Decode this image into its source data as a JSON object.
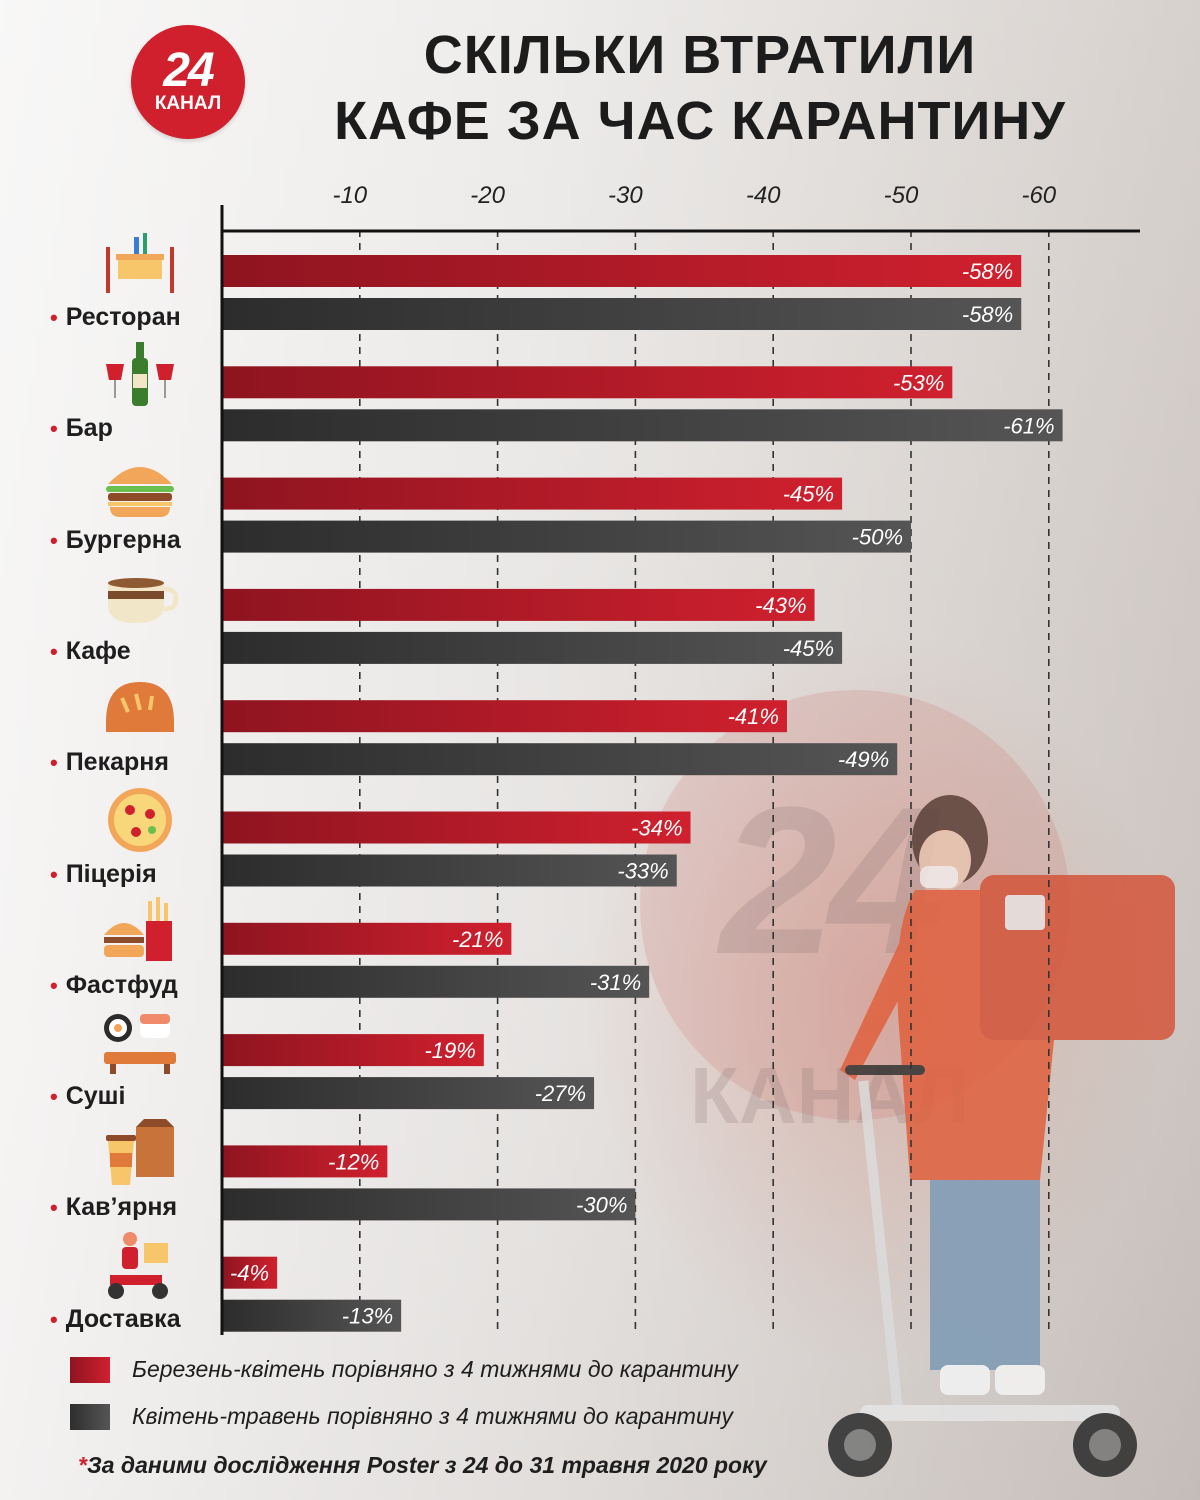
{
  "logo": {
    "number": "24",
    "word": "КАНАЛ"
  },
  "title": {
    "line1": "СКІЛЬКИ ВТРАТИЛИ",
    "line2": "КАФЕ ЗА ЧАС КАРАНТИНУ"
  },
  "colors": {
    "red": "#d0202e",
    "gray": "#555555",
    "accent": "#d0202e"
  },
  "chart_data": {
    "type": "bar",
    "orientation": "horizontal",
    "title": "СКІЛЬКИ ВТРАТИЛИ КАФЕ ЗА ЧАС КАРАНТИНУ",
    "xlabel": "",
    "ylabel": "",
    "xlim": [
      0,
      -66
    ],
    "ticks": [
      -10,
      -20,
      -30,
      -40,
      -50,
      -60
    ],
    "tick_labels": [
      "-10",
      "-20",
      "-30",
      "-40",
      "-50",
      "-60"
    ],
    "grid": true,
    "legend_position": "bottom-left",
    "categories": [
      "Ресторан",
      "Бар",
      "Бургерна",
      "Кафе",
      "Пекарня",
      "Піцерія",
      "Фастфуд",
      "Суші",
      "Кав’ярня",
      "Доставка"
    ],
    "category_icons": [
      "restaurant-table-icon",
      "wine-bottle-glasses-icon",
      "burger-icon",
      "coffee-cup-icon",
      "bread-loaf-icon",
      "pizza-icon",
      "fastfood-icon",
      "sushi-icon",
      "takeaway-coffee-icon",
      "delivery-scooter-icon"
    ],
    "series": [
      {
        "name": "Березень-квітень порівняно з 4 тижнями до карантину",
        "color": "#d0202e",
        "values": [
          -58,
          -53,
          -45,
          -43,
          -41,
          -34,
          -21,
          -19,
          -12,
          -4
        ],
        "labels": [
          "-58%",
          "-53%",
          "-45%",
          "-43%",
          "-41%",
          "-34%",
          "-21%",
          "-19%",
          "-12%",
          "-4%"
        ]
      },
      {
        "name": "Квітень-травень порівняно з 4 тижнями до карантину",
        "color": "#555555",
        "values": [
          -58,
          -61,
          -50,
          -45,
          -49,
          -33,
          -31,
          -27,
          -30,
          -13
        ],
        "labels": [
          "-58%",
          "-61%",
          "-50%",
          "-45%",
          "-49%",
          "-33%",
          "-31%",
          "-27%",
          "-30%",
          "-13%"
        ]
      }
    ]
  },
  "legend": [
    {
      "label": "Березень-квітень порівняно з 4 тижнями до карантину",
      "color": "#d0202e"
    },
    {
      "label": "Квітень-травень порівняно з 4 тижнями до карантину",
      "color": "#555555"
    }
  ],
  "note": {
    "star": "*",
    "text": "За даними дослідження Poster з 24 до 31 травня 2020 року"
  }
}
